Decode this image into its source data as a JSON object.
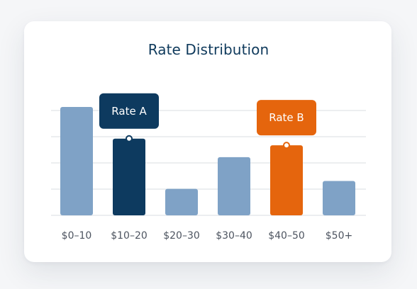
{
  "chart_data": {
    "type": "bar",
    "title": "Rate Distribution",
    "xlabel": "",
    "ylabel": "",
    "categories": [
      "$0–10",
      "$10–20",
      "$20–30",
      "$30–40",
      "$40–50",
      "$50+"
    ],
    "values": [
      4.1,
      2.9,
      1.0,
      2.2,
      2.65,
      1.3
    ],
    "ylim": [
      0,
      4.1
    ],
    "grid": true,
    "legend": "none",
    "colors": {
      "default_bar": "#7fa2c6",
      "rate_a_bar": "#0d3a5f",
      "rate_b_bar": "#e5650d",
      "gridline": "#e6e8ec",
      "title": "#0f3a5c",
      "tick_label": "#4d5460"
    },
    "annotations": [
      {
        "label": "Rate A",
        "category": "$10–20",
        "color": "#0d3a5f"
      },
      {
        "label": "Rate B",
        "category": "$40–50",
        "color": "#e5650d"
      }
    ]
  }
}
